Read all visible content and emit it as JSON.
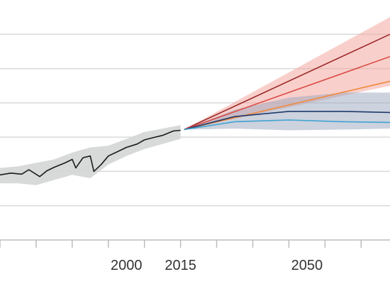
{
  "chart_data": {
    "type": "line",
    "title": "",
    "xlabel": "",
    "ylabel": "",
    "xlim": [
      1965,
      2073
    ],
    "ylim": [
      -1.5,
      5.5
    ],
    "grid": true,
    "x_tick_labels": [
      {
        "value": 2000,
        "label": "2000"
      },
      {
        "value": 2015,
        "label": "2015"
      },
      {
        "value": 2050,
        "label": "2050"
      }
    ],
    "x_minor_ticks": [
      1965,
      1975,
      1985,
      1995,
      2005,
      2015,
      2025,
      2035,
      2045,
      2055,
      2065
    ],
    "y_gridlines": [
      -0.5,
      0.5,
      1.5,
      2.5,
      3.5,
      4.5
    ],
    "historical": {
      "color": "#1a1a1a",
      "band_color": "#d3d6d5",
      "points": [
        [
          1965,
          0.4
        ],
        [
          1968,
          0.45
        ],
        [
          1971,
          0.42
        ],
        [
          1973,
          0.55
        ],
        [
          1976,
          0.35
        ],
        [
          1978,
          0.52
        ],
        [
          1980,
          0.62
        ],
        [
          1983,
          0.75
        ],
        [
          1985,
          0.85
        ],
        [
          1986,
          0.6
        ],
        [
          1988,
          0.9
        ],
        [
          1990,
          0.95
        ],
        [
          1991,
          0.5
        ],
        [
          1993,
          0.7
        ],
        [
          1995,
          0.95
        ],
        [
          1998,
          1.1
        ],
        [
          2000,
          1.2
        ],
        [
          2003,
          1.3
        ],
        [
          2005,
          1.42
        ],
        [
          2008,
          1.5
        ],
        [
          2010,
          1.55
        ],
        [
          2013,
          1.68
        ],
        [
          2015,
          1.7
        ]
      ],
      "band_upper": [
        [
          1965,
          0.6
        ],
        [
          1970,
          0.65
        ],
        [
          1975,
          0.75
        ],
        [
          1980,
          0.85
        ],
        [
          1985,
          1.05
        ],
        [
          1990,
          1.2
        ],
        [
          1995,
          1.25
        ],
        [
          2000,
          1.45
        ],
        [
          2005,
          1.65
        ],
        [
          2010,
          1.75
        ],
        [
          2015,
          1.85
        ]
      ],
      "band_lower": [
        [
          1965,
          0.15
        ],
        [
          1970,
          0.15
        ],
        [
          1975,
          0.1
        ],
        [
          1980,
          0.25
        ],
        [
          1985,
          0.4
        ],
        [
          1990,
          0.3
        ],
        [
          1995,
          0.7
        ],
        [
          2000,
          0.95
        ],
        [
          2005,
          1.15
        ],
        [
          2010,
          1.3
        ],
        [
          2015,
          1.45
        ]
      ]
    },
    "bands": [
      {
        "color": "#f4a7a0",
        "opacity": 0.55,
        "upper": [
          [
            2016,
            1.72
          ],
          [
            2073,
            5.0
          ]
        ],
        "lower": [
          [
            2016,
            1.72
          ],
          [
            2073,
            3.0
          ]
        ]
      },
      {
        "color": "#9aa6bd",
        "opacity": 0.5,
        "upper": [
          [
            2016,
            1.72
          ],
          [
            2030,
            2.3
          ],
          [
            2045,
            2.65
          ],
          [
            2060,
            2.8
          ],
          [
            2073,
            2.8
          ]
        ],
        "lower": [
          [
            2016,
            1.72
          ],
          [
            2030,
            1.75
          ],
          [
            2045,
            1.7
          ],
          [
            2060,
            1.72
          ],
          [
            2073,
            1.75
          ]
        ]
      }
    ],
    "series": [
      {
        "color": "#9b2a2a",
        "points": [
          [
            2016,
            1.72
          ],
          [
            2073,
            4.5
          ]
        ]
      },
      {
        "color": "#d94a45",
        "points": [
          [
            2016,
            1.72
          ],
          [
            2073,
            3.85
          ]
        ]
      },
      {
        "color": "#f08a3c",
        "points": [
          [
            2016,
            1.72
          ],
          [
            2073,
            3.13
          ]
        ]
      },
      {
        "color": "#1f3a6b",
        "points": [
          [
            2016,
            1.72
          ],
          [
            2030,
            2.1
          ],
          [
            2045,
            2.25
          ],
          [
            2060,
            2.25
          ],
          [
            2073,
            2.22
          ]
        ]
      },
      {
        "color": "#3fa3d1",
        "points": [
          [
            2016,
            1.72
          ],
          [
            2030,
            1.95
          ],
          [
            2045,
            2.0
          ],
          [
            2060,
            1.95
          ],
          [
            2073,
            1.93
          ]
        ]
      }
    ]
  }
}
